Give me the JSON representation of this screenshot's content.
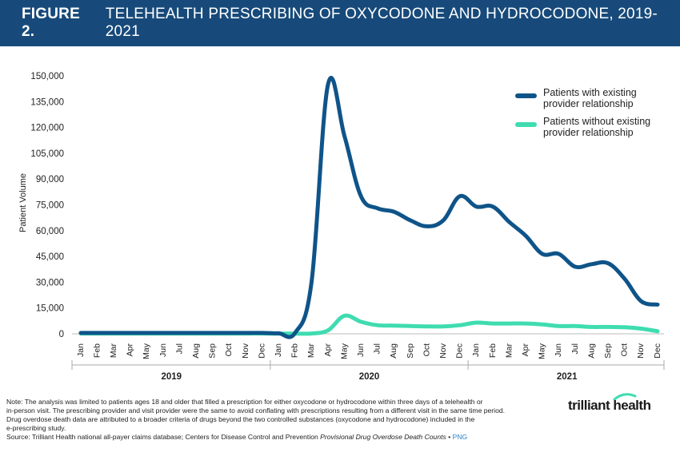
{
  "header": {
    "figure_label": "FIGURE 2.",
    "title": "TELEHEALTH PRESCRIBING OF OXYCODONE AND HYDROCODONE, 2019-2021"
  },
  "chart_data": {
    "type": "line",
    "ylabel": "Patient Volume",
    "ylim": [
      0,
      150000
    ],
    "yticks": [
      0,
      15000,
      30000,
      45000,
      60000,
      75000,
      90000,
      105000,
      120000,
      135000,
      150000
    ],
    "ytick_labels": [
      "0",
      "15,000",
      "30,000",
      "45,000",
      "60,000",
      "75,000",
      "90,000",
      "105,000",
      "120,000",
      "135,000",
      "150,000"
    ],
    "categories": [
      "Jan",
      "Feb",
      "Mar",
      "Apr",
      "May",
      "Jun",
      "Jul",
      "Aug",
      "Sep",
      "Oct",
      "Nov",
      "Dec",
      "Jan",
      "Feb",
      "Mar",
      "Apr",
      "May",
      "Jun",
      "Jul",
      "Aug",
      "Sep",
      "Oct",
      "Nov",
      "Dec",
      "Jan",
      "Feb",
      "Mar",
      "Apr",
      "May",
      "Jun",
      "Jul",
      "Aug",
      "Sep",
      "Oct",
      "Nov",
      "Dec"
    ],
    "year_groups": [
      {
        "label": "2019",
        "start": 0,
        "end": 11
      },
      {
        "label": "2020",
        "start": 12,
        "end": 23
      },
      {
        "label": "2021",
        "start": 24,
        "end": 35
      }
    ],
    "legend_position": "top-right",
    "series": [
      {
        "name": "Patients with existing provider relationship",
        "color": "#0f5489",
        "values": [
          500,
          500,
          500,
          500,
          500,
          500,
          500,
          500,
          500,
          500,
          500,
          500,
          300,
          500,
          30000,
          145000,
          115000,
          80000,
          73000,
          71000,
          66000,
          62500,
          66000,
          80000,
          74000,
          74000,
          65000,
          57000,
          46500,
          46500,
          39000,
          40500,
          41000,
          32000,
          19000,
          17000
        ]
      },
      {
        "name": "Patients without existing provider relationship",
        "color": "#3fdcb0",
        "values": [
          200,
          200,
          200,
          200,
          200,
          200,
          200,
          200,
          200,
          200,
          200,
          200,
          100,
          100,
          200,
          2000,
          10500,
          7000,
          5000,
          4800,
          4500,
          4300,
          4300,
          5000,
          6500,
          6000,
          6000,
          6000,
          5500,
          4500,
          4500,
          4000,
          4000,
          3800,
          3000,
          1500
        ]
      }
    ]
  },
  "footer": {
    "note_line1": "Note: The analysis was limited to patients ages 18 and older that filled a prescription for either oxycodone or hydrocodone within three days of a telehealth or",
    "note_line2": "in-person visit. The prescribing provider and visit provider were the same to avoid conflating with prescriptions resulting from a different visit in the same time period.",
    "note_line3": "Drug overdose death data are attributed to a broader criteria of drugs beyond the two controlled substances (oxycodone and hydrocodone) included in the",
    "note_line4": "e-prescribing study.",
    "source_prefix": "Source: Trilliant Health national all-payer claims database; Centers for Disease Control and Prevention ",
    "source_italic": "Provisional Drug Overdose Death Counts",
    "source_sep": " • ",
    "png_link": "PNG"
  },
  "logo": {
    "text": "trilliant health",
    "accent_color": "#3fdcb0"
  }
}
